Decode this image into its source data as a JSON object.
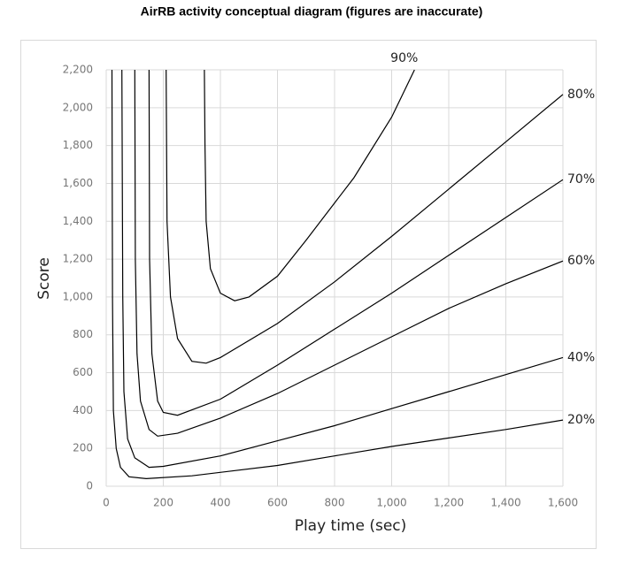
{
  "chart_data": {
    "type": "line",
    "title": "AirRB activity conceptual diagram (figures are inaccurate)",
    "x_label": "Play time (sec)",
    "y_label": "Score",
    "xlim": [
      0,
      1600
    ],
    "ylim": [
      0,
      2200
    ],
    "xticks": [
      0,
      200,
      400,
      600,
      800,
      {
        "value": 1000,
        "label": "1,000"
      },
      {
        "value": 1200,
        "label": "1,200"
      },
      {
        "value": 1400,
        "label": "1,400"
      },
      {
        "value": 1600,
        "label": "1,600"
      }
    ],
    "yticks": [
      0,
      200,
      400,
      600,
      800,
      {
        "value": 1000,
        "label": "1,000"
      },
      {
        "value": 1200,
        "label": "1,200"
      },
      {
        "value": 1400,
        "label": "1,400"
      },
      {
        "value": 1600,
        "label": "1,600"
      },
      {
        "value": 1800,
        "label": "1,800"
      },
      {
        "value": 2000,
        "label": "2,000"
      },
      {
        "value": 2200,
        "label": "2,200"
      }
    ],
    "grid": true,
    "series": [
      {
        "name": "20%",
        "color": "#000000",
        "x": [
          20,
          22,
          25,
          35,
          50,
          80,
          140,
          300,
          600,
          800,
          1000,
          1200,
          1400,
          1600
        ],
        "values": [
          2200,
          1000,
          400,
          200,
          100,
          50,
          40,
          55,
          110,
          160,
          210,
          255,
          300,
          350
        ]
      },
      {
        "name": "40%",
        "color": "#000000",
        "x": [
          55,
          58,
          62,
          75,
          100,
          150,
          200,
          400,
          600,
          800,
          1000,
          1200,
          1400,
          1600
        ],
        "values": [
          2200,
          1000,
          500,
          250,
          150,
          100,
          105,
          160,
          240,
          320,
          410,
          500,
          590,
          680
        ]
      },
      {
        "name": "60%",
        "color": "#000000",
        "x": [
          100,
          102,
          108,
          120,
          150,
          180,
          250,
          400,
          600,
          800,
          1000,
          1200,
          1400,
          1600
        ],
        "values": [
          2200,
          1200,
          700,
          450,
          300,
          265,
          280,
          360,
          490,
          640,
          790,
          940,
          1070,
          1190
        ]
      },
      {
        "name": "70%",
        "color": "#000000",
        "x": [
          150,
          152,
          160,
          180,
          200,
          250,
          400,
          600,
          800,
          1000,
          1200,
          1400,
          1600
        ],
        "values": [
          2200,
          1200,
          700,
          450,
          390,
          375,
          460,
          640,
          830,
          1020,
          1220,
          1420,
          1620
        ]
      },
      {
        "name": "80%",
        "color": "#000000",
        "x": [
          210,
          213,
          225,
          250,
          300,
          350,
          400,
          600,
          800,
          1000,
          1200,
          1400,
          1600
        ],
        "values": [
          2200,
          1400,
          1000,
          780,
          660,
          650,
          680,
          860,
          1080,
          1320,
          1570,
          1820,
          2070
        ]
      },
      {
        "name": "90%",
        "color": "#000000",
        "x": [
          344,
          346,
          350,
          365,
          400,
          450,
          500,
          600,
          700,
          868,
          1000,
          1080
        ],
        "values": [
          2200,
          1800,
          1400,
          1150,
          1020,
          980,
          1000,
          1110,
          1300,
          1630,
          1950,
          2200
        ]
      }
    ]
  }
}
